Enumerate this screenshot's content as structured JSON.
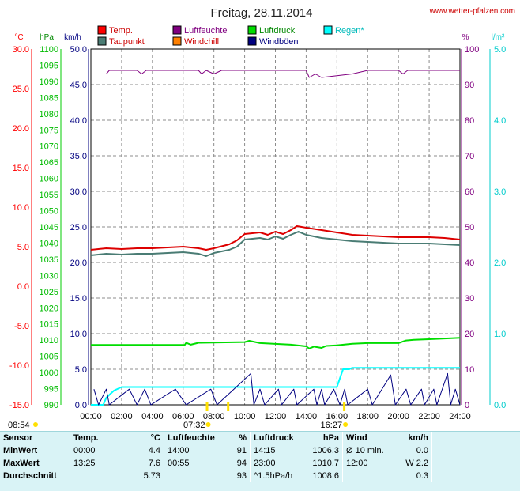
{
  "header": {
    "title": "Freitag, 28.11.2014",
    "site": "www.wetter-pfalzen.com"
  },
  "axis_units": {
    "celsius": "°C",
    "hpa": "hPa",
    "kmh": "km/h",
    "percent": "%",
    "rain": "l/m²"
  },
  "legend": [
    {
      "label": "Temp.",
      "swatch": "#ff0000",
      "text_color": "#cc0000"
    },
    {
      "label": "Luftfeuchte",
      "swatch": "#800080",
      "text_color": "#800080"
    },
    {
      "label": "Luftdruck",
      "swatch": "#00dd00",
      "text_color": "#008800"
    },
    {
      "label": "Regen*",
      "swatch": "#00ffff",
      "text_color": "#00bbbb"
    },
    {
      "label": "Taupunkt",
      "swatch": "#4a7c74",
      "text_color": "#cc0000"
    },
    {
      "label": "Windchill",
      "swatch": "#ff8000",
      "text_color": "#cc0000"
    },
    {
      "label": "Windböen",
      "swatch": "#000080",
      "text_color": "#000080"
    }
  ],
  "colors": {
    "celsius_axis": "#ff0000",
    "hpa_axis": "#00cc00",
    "kmh_axis": "#000080",
    "percent_axis": "#800080",
    "rain_axis": "#00cccc",
    "grid": "#8c8c8c"
  },
  "chart_data": {
    "type": "line",
    "x_range": [
      "00:00",
      "24:00"
    ],
    "x_ticks": [
      "00:00",
      "02:00",
      "04:00",
      "06:00",
      "08:00",
      "10:00",
      "12:00",
      "14:00",
      "16:00",
      "18:00",
      "20:00",
      "22:00",
      "24:00"
    ],
    "axes": {
      "celsius": {
        "range": [
          -15,
          30
        ],
        "ticks": [
          "30.0",
          "25.0",
          "20.0",
          "15.0",
          "10.0",
          "5.0",
          "0.0",
          "-5.0",
          "-10.0",
          "-15.0"
        ]
      },
      "hpa": {
        "range": [
          990,
          1100
        ],
        "ticks": [
          "1100",
          "1095",
          "1090",
          "1085",
          "1080",
          "1075",
          "1070",
          "1065",
          "1060",
          "1055",
          "1050",
          "1045",
          "1040",
          "1035",
          "1030",
          "1025",
          "1020",
          "1015",
          "1010",
          "1005",
          "1000",
          "995",
          "990"
        ]
      },
      "kmh": {
        "range": [
          0,
          50
        ],
        "ticks": [
          "50.0",
          "45.0",
          "40.0",
          "35.0",
          "30.0",
          "25.0",
          "20.0",
          "15.0",
          "10.0",
          "5.0",
          "0.0"
        ]
      },
      "percent": {
        "range": [
          0,
          100
        ],
        "ticks": [
          "100",
          "90",
          "80",
          "70",
          "60",
          "50",
          "40",
          "30",
          "20",
          "10",
          "0"
        ]
      },
      "rain": {
        "range": [
          0,
          5
        ],
        "ticks": [
          "5.0",
          "4.0",
          "3.0",
          "2.0",
          "1.0",
          "0.0"
        ]
      }
    },
    "grid": true,
    "series": [
      {
        "name": "Temp.",
        "color": "#dd0000",
        "axis": "celsius",
        "points": [
          [
            0,
            4.6
          ],
          [
            1,
            4.8
          ],
          [
            2,
            4.7
          ],
          [
            3,
            4.8
          ],
          [
            4,
            4.8
          ],
          [
            5,
            4.9
          ],
          [
            6,
            5.0
          ],
          [
            7,
            4.8
          ],
          [
            7.5,
            4.6
          ],
          [
            8,
            4.8
          ],
          [
            9,
            5.3
          ],
          [
            9.5,
            5.8
          ],
          [
            10,
            6.6
          ],
          [
            11,
            6.8
          ],
          [
            11.5,
            6.5
          ],
          [
            12,
            6.9
          ],
          [
            12.5,
            6.6
          ],
          [
            13,
            7.1
          ],
          [
            13.4,
            7.6
          ],
          [
            14,
            7.4
          ],
          [
            15,
            7.1
          ],
          [
            16,
            6.8
          ],
          [
            17,
            6.5
          ],
          [
            18,
            6.4
          ],
          [
            19,
            6.3
          ],
          [
            20,
            6.2
          ],
          [
            22,
            6.2
          ],
          [
            23,
            6.1
          ],
          [
            24,
            5.9
          ]
        ]
      },
      {
        "name": "Taupunkt",
        "color": "#4a7c74",
        "axis": "celsius",
        "points": [
          [
            0,
            3.9
          ],
          [
            1,
            4.1
          ],
          [
            2,
            4.0
          ],
          [
            3,
            4.1
          ],
          [
            4,
            4.1
          ],
          [
            5,
            4.2
          ],
          [
            6,
            4.3
          ],
          [
            7,
            4.1
          ],
          [
            7.5,
            3.8
          ],
          [
            8,
            4.2
          ],
          [
            9,
            4.6
          ],
          [
            9.5,
            5.0
          ],
          [
            10,
            5.9
          ],
          [
            11,
            6.1
          ],
          [
            11.5,
            5.9
          ],
          [
            12,
            6.3
          ],
          [
            12.5,
            6.0
          ],
          [
            13,
            6.5
          ],
          [
            13.5,
            6.9
          ],
          [
            14,
            6.5
          ],
          [
            15,
            6.1
          ],
          [
            16,
            5.9
          ],
          [
            17,
            5.7
          ],
          [
            18,
            5.6
          ],
          [
            20,
            5.4
          ],
          [
            22,
            5.4
          ],
          [
            24,
            5.2
          ]
        ]
      },
      {
        "name": "Luftfeuchte",
        "color": "#800080",
        "axis": "percent",
        "points": [
          [
            0,
            93
          ],
          [
            1,
            93
          ],
          [
            1.2,
            94
          ],
          [
            3,
            94
          ],
          [
            3.3,
            93
          ],
          [
            3.6,
            94
          ],
          [
            7,
            94
          ],
          [
            7.2,
            93
          ],
          [
            7.5,
            94
          ],
          [
            8,
            93
          ],
          [
            8.5,
            94
          ],
          [
            14,
            94
          ],
          [
            14.2,
            92
          ],
          [
            14.6,
            93
          ],
          [
            15,
            92
          ],
          [
            17,
            93
          ],
          [
            18,
            94
          ],
          [
            20,
            94
          ],
          [
            20.3,
            93
          ],
          [
            20.6,
            94
          ],
          [
            24,
            94
          ]
        ]
      },
      {
        "name": "Luftdruck",
        "color": "#00dd00",
        "axis": "hpa",
        "points": [
          [
            0,
            1008.5
          ],
          [
            6.1,
            1008.5
          ],
          [
            6.2,
            1009.2
          ],
          [
            6.5,
            1008.6
          ],
          [
            7,
            1009.2
          ],
          [
            10,
            1009.4
          ],
          [
            10.3,
            1009.8
          ],
          [
            11,
            1009.1
          ],
          [
            13,
            1008.6
          ],
          [
            14,
            1008.1
          ],
          [
            14.2,
            1007.4
          ],
          [
            14.5,
            1008.0
          ],
          [
            15,
            1007.6
          ],
          [
            15.3,
            1008.2
          ],
          [
            16,
            1008.4
          ],
          [
            17,
            1008.9
          ],
          [
            18,
            1009.1
          ],
          [
            20,
            1009.1
          ],
          [
            20.5,
            1009.9
          ],
          [
            21,
            1010.1
          ],
          [
            22,
            1010.3
          ],
          [
            24,
            1010.7
          ]
        ]
      },
      {
        "name": "Regen*",
        "color": "#00ffff",
        "axis": "rain",
        "points": [
          [
            0,
            0
          ],
          [
            0.8,
            0
          ],
          [
            1,
            0.1
          ],
          [
            1.5,
            0.2
          ],
          [
            2,
            0.25
          ],
          [
            16,
            0.25
          ],
          [
            16.4,
            0.5
          ],
          [
            16.8,
            0.5
          ],
          [
            17,
            0.52
          ],
          [
            24,
            0.52
          ]
        ]
      },
      {
        "name": "Windböen",
        "color": "#000080",
        "axis": "kmh",
        "points": [
          [
            0.2,
            2.2
          ],
          [
            0.5,
            0
          ],
          [
            1,
            2.2
          ],
          [
            1.2,
            0
          ],
          [
            2.5,
            2.2
          ],
          [
            3,
            0
          ],
          [
            3.5,
            2.2
          ],
          [
            3.9,
            0
          ],
          [
            5.5,
            2.2
          ],
          [
            6.2,
            0
          ],
          [
            7.8,
            2.2
          ],
          [
            8.2,
            0
          ],
          [
            10.4,
            4.4
          ],
          [
            10.6,
            0
          ],
          [
            11,
            2.2
          ],
          [
            11.3,
            0
          ],
          [
            12.2,
            2.2
          ],
          [
            12.4,
            0
          ],
          [
            13.2,
            2.2
          ],
          [
            13.4,
            0
          ],
          [
            14.5,
            2.2
          ],
          [
            14.7,
            0
          ],
          [
            15,
            2.2
          ],
          [
            15.2,
            0
          ],
          [
            15.8,
            2.2
          ],
          [
            16.2,
            0
          ],
          [
            16.5,
            2.2
          ],
          [
            16.7,
            0
          ],
          [
            18,
            2.2
          ],
          [
            18.3,
            0
          ],
          [
            19.5,
            4.2
          ],
          [
            19.8,
            0
          ],
          [
            20.5,
            2.2
          ],
          [
            20.8,
            0
          ],
          [
            21.5,
            2.2
          ],
          [
            21.7,
            0
          ],
          [
            22.3,
            2.2
          ],
          [
            22.5,
            0
          ],
          [
            23.2,
            4.4
          ],
          [
            23.4,
            0
          ],
          [
            23.7,
            2.2
          ],
          [
            24,
            0
          ]
        ]
      }
    ],
    "events": [
      {
        "label": "08:54",
        "at": 8.9,
        "row": "left"
      },
      {
        "label": "07:32",
        "at": 7.53,
        "row": "mid"
      },
      {
        "label": "16:27",
        "at": 16.45,
        "row": "mid"
      }
    ]
  },
  "stats": {
    "headers": [
      "Sensor",
      "Temp.",
      "°C",
      "Luftfeuchte",
      "%",
      "Luftdruck",
      "hPa",
      "Wind",
      "km/h"
    ],
    "rows": [
      [
        "MinWert",
        "00:00",
        "4.4",
        "14:00",
        "91",
        "14:15",
        "1006.3",
        "Ø 10 min.",
        "0.0"
      ],
      [
        "MaxWert",
        "13:25",
        "7.6",
        "00:55",
        "94",
        "23:00",
        "1010.7",
        "12:00",
        "W 2.2"
      ],
      [
        "Durchschnitt",
        "",
        "5.73",
        "",
        "93",
        "^1.5hPa/h",
        "1008.6",
        "",
        "0.3"
      ]
    ]
  }
}
